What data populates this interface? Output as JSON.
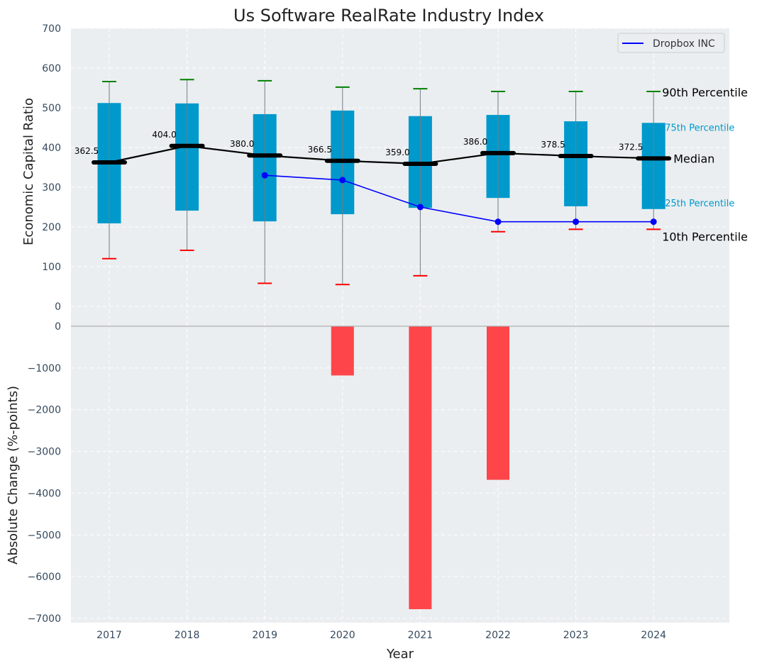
{
  "chart_data": [
    {
      "type": "box",
      "title": "Us Software RealRate Industry Index",
      "xlabel": "",
      "ylabel": "Economic Capital Ratio",
      "ylim": [
        0,
        700
      ],
      "yticks": [
        0,
        100,
        200,
        300,
        400,
        500,
        600,
        700
      ],
      "grid": true,
      "categories": [
        "2017",
        "2018",
        "2019",
        "2020",
        "2021",
        "2022",
        "2023",
        "2024"
      ],
      "percentiles": {
        "p10": [
          120,
          141,
          58,
          55,
          77,
          188,
          194,
          194
        ],
        "p25": [
          209,
          241,
          214,
          232,
          248,
          273,
          252,
          245
        ],
        "median": [
          362.5,
          404.0,
          380.0,
          366.5,
          359.0,
          386.0,
          378.5,
          372.5
        ],
        "p75": [
          512,
          511,
          484,
          493,
          479,
          482,
          466,
          462
        ],
        "p90": [
          566,
          571,
          568,
          552,
          548,
          541,
          541,
          541
        ]
      },
      "median_labels": [
        "362.5",
        "404.0",
        "380.0",
        "366.5",
        "359.0",
        "386.0",
        "378.5",
        "372.5"
      ],
      "series": [
        {
          "name": "Dropbox INC",
          "color": "#0000ff",
          "x": [
            "2019",
            "2020",
            "2021",
            "2022",
            "2023",
            "2024"
          ],
          "values": [
            330,
            318,
            250,
            213,
            213,
            213
          ]
        }
      ],
      "legend": {
        "entries": [
          "Dropbox INC"
        ],
        "placement": "top-right"
      },
      "annotations": {
        "p90": "90th Percentile",
        "p75": "75th Percentile",
        "median": "Median",
        "p25": "25th Percentile",
        "p10": "10th Percentile"
      },
      "colors": {
        "box": "#0099cc",
        "median": "#000000",
        "p90_cap": "#008000",
        "p10_cap": "#ff0000",
        "background": "#eaeef0"
      }
    },
    {
      "type": "bar",
      "xlabel": "Year",
      "ylabel": "Absolute Change (%-points)",
      "ylim": [
        -7000,
        0
      ],
      "yticks": [
        0,
        -1000,
        -2000,
        -3000,
        -4000,
        -5000,
        -6000,
        -7000
      ],
      "ytick_labels": [
        "0",
        "−1000",
        "−2000",
        "−3000",
        "−4000",
        "−5000",
        "−6000",
        "−7000"
      ],
      "grid": true,
      "categories": [
        "2017",
        "2018",
        "2019",
        "2020",
        "2021",
        "2022",
        "2023",
        "2024"
      ],
      "values": [
        0,
        0,
        0,
        -1180,
        -6780,
        -3680,
        0,
        0
      ],
      "bar_color": "#ff3b3f"
    }
  ]
}
